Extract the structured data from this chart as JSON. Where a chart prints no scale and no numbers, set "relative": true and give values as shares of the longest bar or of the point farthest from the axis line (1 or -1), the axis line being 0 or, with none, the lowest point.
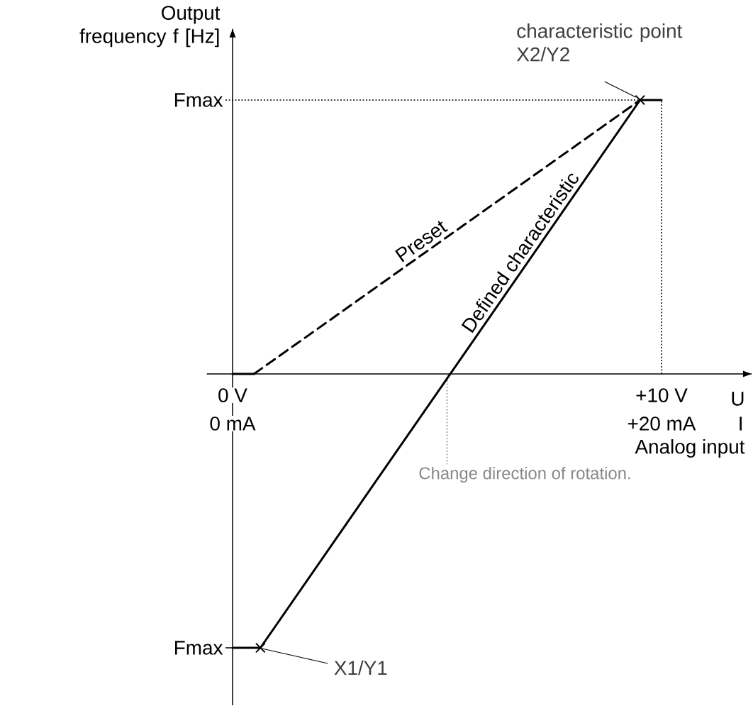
{
  "chart_data": {
    "type": "line",
    "relative": true,
    "ylabel": "Output frequency f [Hz]",
    "xlabel": "U",
    "x2label": "I",
    "xlim": [
      -0.6,
      12.1
    ],
    "x2lim": [
      -1.2,
      24.2
    ],
    "xticks": [
      {
        "value": 0,
        "label": "0 V"
      },
      {
        "value": 10,
        "label": "+10 V"
      }
    ],
    "x2ticks": [
      {
        "value": 0,
        "label": "0 mA"
      },
      {
        "value": 20,
        "label": "+20 mA"
      }
    ],
    "series": [
      {
        "name": "Preset",
        "type": "line",
        "line_style": "dashed",
        "color": "#000000",
        "x": [
          0.5,
          9.5
        ],
        "values": [
          0,
          1
        ]
      },
      {
        "name": "Defined characteristic",
        "type": "line",
        "line_style": "solid",
        "color": "#000000",
        "x": [
          0.65,
          9.5
        ],
        "values": [
          -1,
          1
        ]
      },
      {
        "type": "line",
        "line_style": "solid",
        "color": "#000000",
        "x": [
          0,
          0.5
        ],
        "values": [
          0,
          0
        ]
      },
      {
        "type": "line",
        "line_style": "solid",
        "color": "#000000",
        "x": [
          9.5,
          10
        ],
        "values": [
          1,
          1
        ]
      },
      {
        "type": "line",
        "line_style": "solid",
        "color": "#000000",
        "x": [
          0,
          0.65
        ],
        "values": [
          -1,
          -1
        ]
      },
      {
        "type": "scatter",
        "marker": "cross",
        "color": "#000000",
        "x": [
          0.65,
          9.5
        ],
        "values": [
          -1,
          1
        ]
      }
    ],
    "ref_lines": [
      {
        "axis": "y",
        "value": 1,
        "line_style": "dotted",
        "color": "#000000",
        "label": "Fmax"
      },
      {
        "axis": "y",
        "value": -1,
        "line_style": "solid",
        "color": "#000000",
        "label": "Fmax"
      },
      {
        "axis": "x",
        "value": 10,
        "line_style": "dotted",
        "color": "#000000"
      },
      {
        "axis": "x",
        "value": 5,
        "line_style": "dotted",
        "color": "#888888",
        "label": "Change direction of rotation."
      }
    ],
    "annotations": [
      {
        "text": "characteristic point X2/Y2",
        "x": 9.5,
        "y": 1
      },
      {
        "text": "X1/Y1",
        "x": 0.65,
        "y": -1
      },
      "Analog input"
    ]
  }
}
